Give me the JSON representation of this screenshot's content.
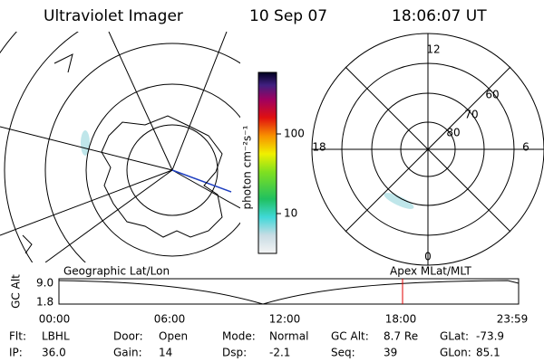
{
  "header": {
    "title": "Ultraviolet Imager",
    "date": "10 Sep 07",
    "time": "18:06:07 UT"
  },
  "colorbar": {
    "label": "photon cm⁻²s⁻¹",
    "ticks": [
      100,
      10
    ]
  },
  "mlt_plot": {
    "mlt_labels": [
      12,
      18,
      6,
      0
    ],
    "lat_labels": [
      60,
      70,
      80
    ]
  },
  "timeline": {
    "axis_label": "GC Alt",
    "y_labels": [
      "9.0",
      1.8
    ],
    "left_title": "Geographic Lat/Lon",
    "right_title": "Apex MLat/MLT",
    "times": [
      "00:00",
      "06:00",
      "12:00",
      "18:00",
      "23:59"
    ]
  },
  "footer": {
    "rows": [
      [
        {
          "label": "Flt:",
          "value": "LBHL"
        },
        {
          "label": "Door:",
          "value": "Open"
        },
        {
          "label": "Mode:",
          "value": "Normal"
        },
        {
          "label": "GC Alt:",
          "value": "8.7 Re"
        },
        {
          "label": "GLat:",
          "value": -73.9
        }
      ],
      [
        {
          "label": "IP:",
          "value": "36.0"
        },
        {
          "label": "Gain:",
          "value": 14
        },
        {
          "label": "Dsp:",
          "value": -2.1
        },
        {
          "label": "Seq:",
          "value": 39
        },
        {
          "label": "GLon:",
          "value": 85.1
        }
      ]
    ]
  }
}
